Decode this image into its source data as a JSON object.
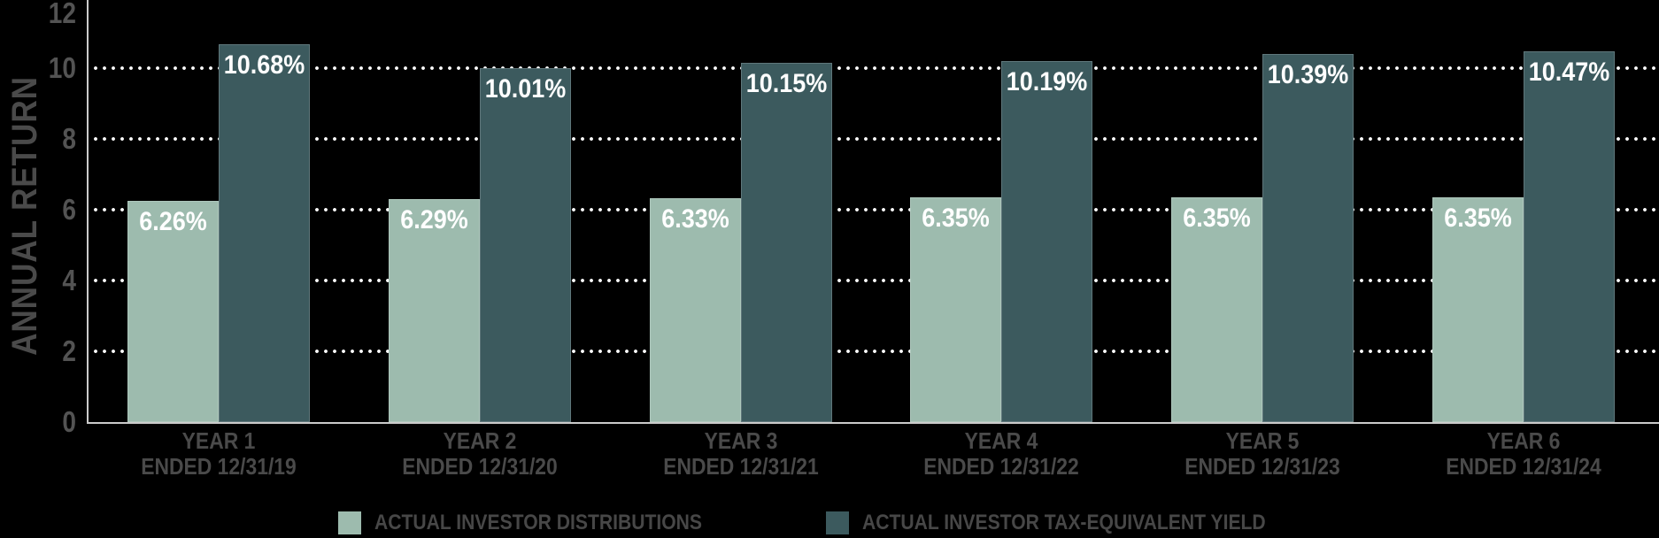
{
  "chart_data": {
    "type": "bar",
    "title": "",
    "ylabel": "ANNUAL RETURN",
    "ylim": [
      0,
      12
    ],
    "yticks": [
      0,
      2,
      4,
      6,
      8,
      10,
      12
    ],
    "grid_values": [
      2,
      4,
      6,
      8,
      10
    ],
    "grid_style": "white dotted horizontal lines behind bars",
    "legend_position": "bottom",
    "categories": [
      {
        "label": "YEAR 1",
        "sublabel": "ENDED 12/31/19"
      },
      {
        "label": "YEAR 2",
        "sublabel": "ENDED 12/31/20"
      },
      {
        "label": "YEAR 3",
        "sublabel": "ENDED 12/31/21"
      },
      {
        "label": "YEAR 4",
        "sublabel": "ENDED 12/31/22"
      },
      {
        "label": "YEAR 5",
        "sublabel": "ENDED 12/31/23"
      },
      {
        "label": "YEAR 6",
        "sublabel": "ENDED 12/31/24"
      }
    ],
    "series": [
      {
        "name": "ACTUAL INVESTOR DISTRIBUTIONS",
        "color": "#9dbbae",
        "values": [
          6.26,
          6.29,
          6.33,
          6.35,
          6.35,
          6.35
        ],
        "labels": [
          "6.26%",
          "6.29%",
          "6.33%",
          "6.35%",
          "6.35%",
          "6.35%"
        ]
      },
      {
        "name": "ACTUAL INVESTOR TAX-EQUIVALENT YIELD",
        "color": "#3c5a5e",
        "values": [
          10.68,
          10.01,
          10.15,
          10.19,
          10.39,
          10.47
        ],
        "labels": [
          "10.68%",
          "10.01%",
          "10.15%",
          "10.19%",
          "10.39%",
          "10.47%"
        ]
      }
    ]
  },
  "style": {
    "background": "#000000",
    "axis_line_color": "#cbcbcb",
    "grid_dot_color": "#ffffff",
    "tick_label_color": "#535353",
    "category_label_color": "#4a4a4a",
    "legend_label_color": "#474747",
    "bar_value_label_color": "#ffffff"
  }
}
